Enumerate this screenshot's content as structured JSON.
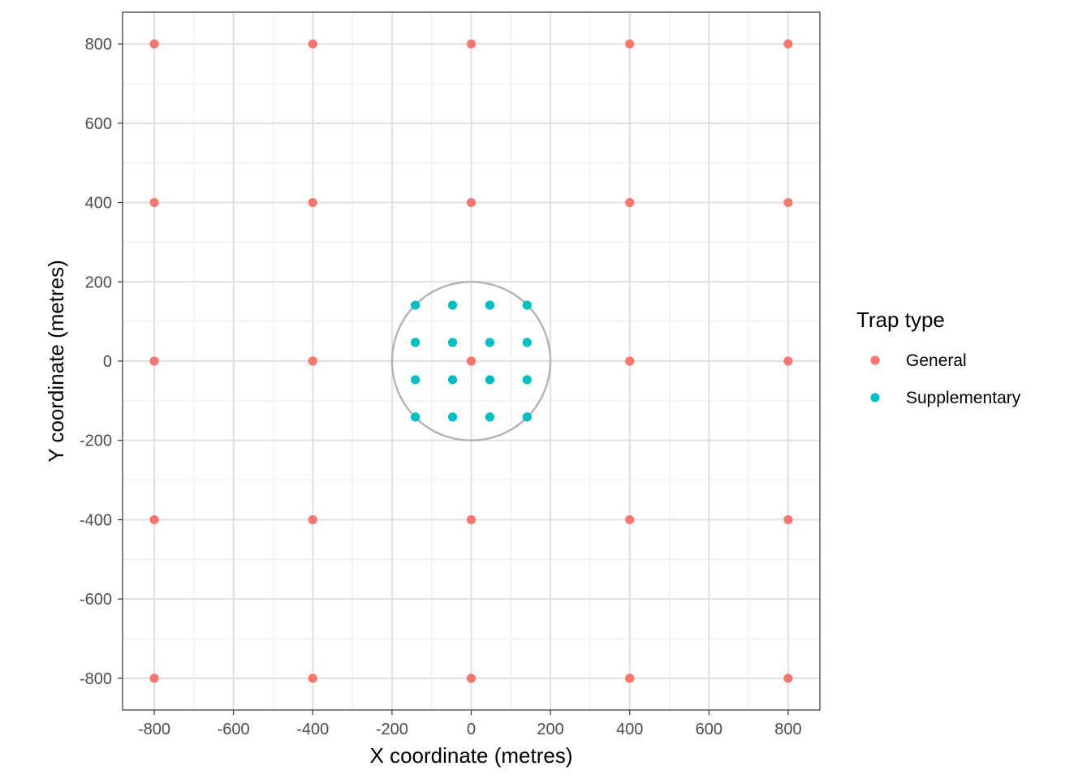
{
  "chart_data": {
    "type": "scatter",
    "title": "",
    "xlabel": "X coordinate (metres)",
    "ylabel": "Y coordinate (metres)",
    "xlim": [
      -880,
      880
    ],
    "ylim": [
      -880,
      880
    ],
    "x_ticks": [
      -800,
      -600,
      -400,
      -200,
      0,
      200,
      400,
      600,
      800
    ],
    "y_ticks": [
      -800,
      -600,
      -400,
      -200,
      0,
      200,
      400,
      600,
      800
    ],
    "grid": true,
    "legend": {
      "title": "Trap type",
      "position": "right"
    },
    "series": [
      {
        "name": "General",
        "color": "#F8766D",
        "points": [
          [
            -800,
            800
          ],
          [
            -400,
            800
          ],
          [
            0,
            800
          ],
          [
            400,
            800
          ],
          [
            800,
            800
          ],
          [
            -800,
            400
          ],
          [
            -400,
            400
          ],
          [
            0,
            400
          ],
          [
            400,
            400
          ],
          [
            800,
            400
          ],
          [
            -800,
            0
          ],
          [
            -400,
            0
          ],
          [
            0,
            0
          ],
          [
            400,
            0
          ],
          [
            800,
            0
          ],
          [
            -800,
            -400
          ],
          [
            -400,
            -400
          ],
          [
            0,
            -400
          ],
          [
            400,
            -400
          ],
          [
            800,
            -400
          ],
          [
            -800,
            -800
          ],
          [
            -400,
            -800
          ],
          [
            0,
            -800
          ],
          [
            400,
            -800
          ],
          [
            800,
            -800
          ]
        ]
      },
      {
        "name": "Supplementary",
        "color": "#00BFC4",
        "points": [
          [
            -141,
            141
          ],
          [
            -47,
            141
          ],
          [
            47,
            141
          ],
          [
            141,
            141
          ],
          [
            -141,
            47
          ],
          [
            -47,
            47
          ],
          [
            47,
            47
          ],
          [
            141,
            47
          ],
          [
            -141,
            -47
          ],
          [
            -47,
            -47
          ],
          [
            47,
            -47
          ],
          [
            141,
            -47
          ],
          [
            -141,
            -141
          ],
          [
            -47,
            -141
          ],
          [
            47,
            -141
          ],
          [
            141,
            -141
          ]
        ]
      }
    ],
    "annotations": [
      {
        "type": "circle",
        "center": [
          0,
          0
        ],
        "radius": 200,
        "color": "#B3B3B3"
      }
    ]
  }
}
